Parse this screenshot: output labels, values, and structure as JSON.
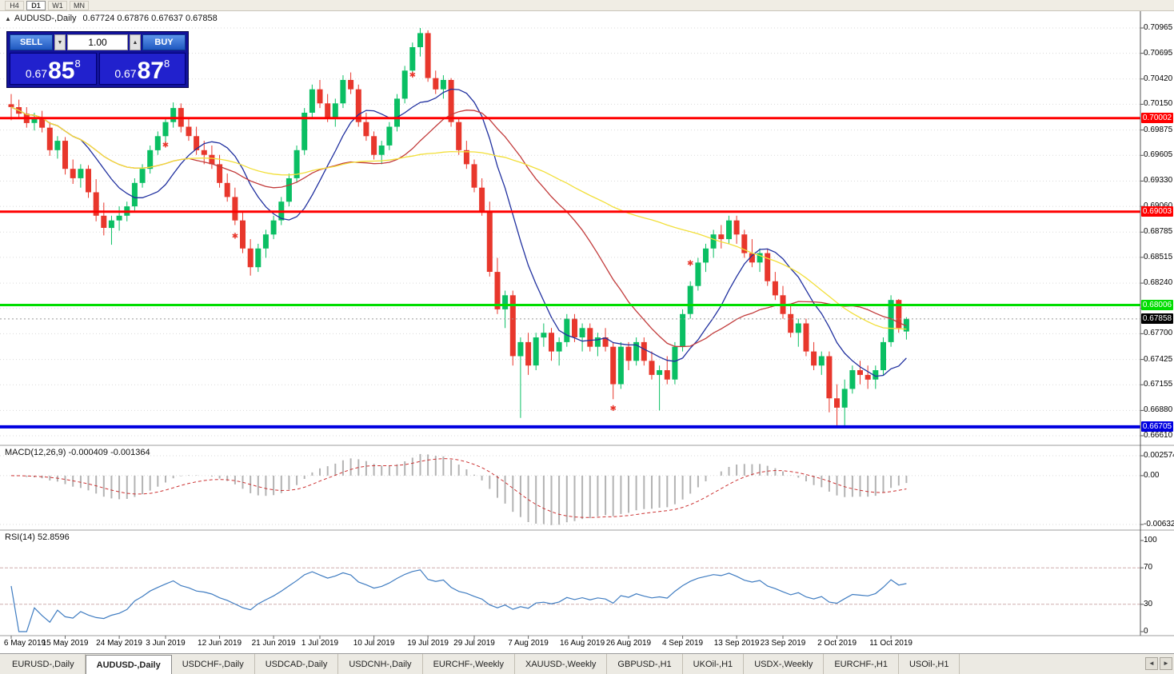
{
  "colors": {
    "up": "#0abf63",
    "down": "#e8372c",
    "grid": "#dadada",
    "separator": "#9c9c9c",
    "ma_fast": "#20309f",
    "ma_mid": "#c23b3b",
    "ma_slow": "#f2df3a",
    "macd_hist": "#b3b3b3",
    "macd_signal": "#cc3333",
    "rsi_line": "#3f7cc1",
    "rsi_level": "#cfadad",
    "current_line": "#9a9a9a",
    "current_tag": "#000000"
  },
  "toolbar": {
    "timeframes": [
      {
        "label": "H4",
        "active": false
      },
      {
        "label": "D1",
        "active": true
      },
      {
        "label": "W1",
        "active": false
      },
      {
        "label": "MN",
        "active": false
      }
    ]
  },
  "chart_header": {
    "collapse_icon": "▲",
    "title": "AUDUSD-,Daily",
    "ohlc": "0.67724 0.67876 0.67637 0.67858"
  },
  "trade_panel": {
    "sell_label": "SELL",
    "buy_label": "BUY",
    "volume": "1.00",
    "volume_down_icon": "▼",
    "volume_up_icon": "▲",
    "sell_price": {
      "prefix": "0.67",
      "digits": "85",
      "pip": "8"
    },
    "buy_price": {
      "prefix": "0.67",
      "digits": "87",
      "pip": "8"
    }
  },
  "chart_data": {
    "type": "candlestick",
    "symbol": "AUDUSD-",
    "timeframe": "Daily",
    "last_ohlc": {
      "open": 0.67724,
      "high": 0.67876,
      "low": 0.67637,
      "close": 0.67858
    },
    "y_axis_labels": [
      "0.70965",
      "0.70695",
      "0.70420",
      "0.70150",
      "0.69875",
      "0.69605",
      "0.69330",
      "0.69060",
      "0.68785",
      "0.68515",
      "0.68240",
      "0.67970",
      "0.67700",
      "0.67425",
      "0.67155",
      "0.66880",
      "0.66610"
    ],
    "x_ticks": [
      {
        "bar": 0,
        "label": "6 May 2019"
      },
      {
        "bar": 7,
        "label": "15 May 2019"
      },
      {
        "bar": 14,
        "label": "24 May 2019"
      },
      {
        "bar": 20,
        "label": "3 Jun 2019"
      },
      {
        "bar": 27,
        "label": "12 Jun 2019"
      },
      {
        "bar": 34,
        "label": "21 Jun 2019"
      },
      {
        "bar": 40,
        "label": "1 Jul 2019"
      },
      {
        "bar": 47,
        "label": "10 Jul 2019"
      },
      {
        "bar": 54,
        "label": "19 Jul 2019"
      },
      {
        "bar": 60,
        "label": "29 Jul 2019"
      },
      {
        "bar": 67,
        "label": "7 Aug 2019"
      },
      {
        "bar": 74,
        "label": "16 Aug 2019"
      },
      {
        "bar": 80,
        "label": "26 Aug 2019"
      },
      {
        "bar": 87,
        "label": "4 Sep 2019"
      },
      {
        "bar": 94,
        "label": "13 Sep 2019"
      },
      {
        "bar": 100,
        "label": "23 Sep 2019"
      },
      {
        "bar": 107,
        "label": "2 Oct 2019"
      },
      {
        "bar": 114,
        "label": "11 Oct 2019"
      }
    ],
    "candles": [
      [
        0.7015,
        0.7026,
        0.6998,
        0.7012
      ],
      [
        0.7012,
        0.702,
        0.7,
        0.7005
      ],
      [
        0.7005,
        0.7012,
        0.699,
        0.6995
      ],
      [
        0.6995,
        0.7006,
        0.6987,
        0.7001
      ],
      [
        0.7001,
        0.7008,
        0.6985,
        0.699
      ],
      [
        0.699,
        0.6996,
        0.696,
        0.6966
      ],
      [
        0.6966,
        0.6981,
        0.6957,
        0.6976
      ],
      [
        0.6976,
        0.698,
        0.694,
        0.6946
      ],
      [
        0.6946,
        0.6956,
        0.693,
        0.6936
      ],
      [
        0.6936,
        0.6951,
        0.6926,
        0.6946
      ],
      [
        0.6946,
        0.695,
        0.6915,
        0.6921
      ],
      [
        0.6921,
        0.6935,
        0.689,
        0.6896
      ],
      [
        0.6896,
        0.691,
        0.6875,
        0.6883
      ],
      [
        0.6883,
        0.6896,
        0.6865,
        0.6891
      ],
      [
        0.6891,
        0.6906,
        0.688,
        0.6896
      ],
      [
        0.6896,
        0.6911,
        0.689,
        0.6906
      ],
      [
        0.6906,
        0.6936,
        0.6901,
        0.6931
      ],
      [
        0.6931,
        0.6951,
        0.6926,
        0.6946
      ],
      [
        0.6946,
        0.6971,
        0.6941,
        0.6966
      ],
      [
        0.6966,
        0.6986,
        0.6961,
        0.6981
      ],
      [
        0.6981,
        0.7001,
        0.697,
        0.6996
      ],
      [
        0.6996,
        0.7017,
        0.699,
        0.7011
      ],
      [
        0.7011,
        0.7016,
        0.6985,
        0.6991
      ],
      [
        0.6991,
        0.7001,
        0.6976,
        0.6981
      ],
      [
        0.6981,
        0.6991,
        0.6961,
        0.6966
      ],
      [
        0.6966,
        0.6976,
        0.6951,
        0.6961
      ],
      [
        0.6961,
        0.6971,
        0.6946,
        0.6951
      ],
      [
        0.6951,
        0.6961,
        0.6926,
        0.6931
      ],
      [
        0.6931,
        0.6941,
        0.6911,
        0.6916
      ],
      [
        0.6916,
        0.6926,
        0.6886,
        0.6891
      ],
      [
        0.6891,
        0.6901,
        0.6856,
        0.6861
      ],
      [
        0.6861,
        0.6871,
        0.6832,
        0.6841
      ],
      [
        0.6841,
        0.6866,
        0.6836,
        0.6861
      ],
      [
        0.6861,
        0.6881,
        0.6851,
        0.6876
      ],
      [
        0.6876,
        0.6896,
        0.6871,
        0.6891
      ],
      [
        0.6891,
        0.6916,
        0.6886,
        0.6911
      ],
      [
        0.6911,
        0.6941,
        0.6906,
        0.6936
      ],
      [
        0.6936,
        0.6971,
        0.6931,
        0.6966
      ],
      [
        0.6966,
        0.7011,
        0.6961,
        0.7006
      ],
      [
        0.7006,
        0.7036,
        0.7001,
        0.7031
      ],
      [
        0.7031,
        0.7041,
        0.7011,
        0.7016
      ],
      [
        0.7016,
        0.7026,
        0.6996,
        0.7001
      ],
      [
        0.7001,
        0.7021,
        0.6991,
        0.7016
      ],
      [
        0.7016,
        0.7046,
        0.7011,
        0.7041
      ],
      [
        0.7041,
        0.7049,
        0.7026,
        0.7031
      ],
      [
        0.7031,
        0.7036,
        0.6991,
        0.6996
      ],
      [
        0.6996,
        0.7006,
        0.6976,
        0.6981
      ],
      [
        0.6981,
        0.6986,
        0.6956,
        0.6961
      ],
      [
        0.6961,
        0.6976,
        0.6951,
        0.6971
      ],
      [
        0.6971,
        0.6996,
        0.6966,
        0.6991
      ],
      [
        0.6991,
        0.7026,
        0.6986,
        0.7021
      ],
      [
        0.7021,
        0.7056,
        0.7016,
        0.7051
      ],
      [
        0.7051,
        0.7081,
        0.7046,
        0.7076
      ],
      [
        0.7076,
        0.70965,
        0.7066,
        0.7091
      ],
      [
        0.7091,
        0.7094,
        0.7039,
        0.7043
      ],
      [
        0.7043,
        0.7051,
        0.7026,
        0.7031
      ],
      [
        0.7031,
        0.7046,
        0.7021,
        0.7041
      ],
      [
        0.7041,
        0.7043,
        0.6991,
        0.6996
      ],
      [
        0.6996,
        0.7001,
        0.6961,
        0.6966
      ],
      [
        0.6966,
        0.6976,
        0.6946,
        0.6951
      ],
      [
        0.6951,
        0.6956,
        0.6921,
        0.6926
      ],
      [
        0.6926,
        0.6936,
        0.6896,
        0.6901
      ],
      [
        0.6901,
        0.6911,
        0.6831,
        0.6836
      ],
      [
        0.6836,
        0.6851,
        0.6791,
        0.6796
      ],
      [
        0.6796,
        0.6816,
        0.6776,
        0.6811
      ],
      [
        0.6811,
        0.6816,
        0.6736,
        0.6746
      ],
      [
        0.6746,
        0.6766,
        0.668,
        0.6761
      ],
      [
        0.6761,
        0.6771,
        0.6726,
        0.6736
      ],
      [
        0.6736,
        0.6771,
        0.6731,
        0.6766
      ],
      [
        0.6766,
        0.6781,
        0.6756,
        0.6771
      ],
      [
        0.6771,
        0.6776,
        0.6741,
        0.6751
      ],
      [
        0.6751,
        0.6766,
        0.6736,
        0.6761
      ],
      [
        0.6761,
        0.6791,
        0.6756,
        0.6786
      ],
      [
        0.6786,
        0.6791,
        0.6761,
        0.6766
      ],
      [
        0.6766,
        0.6781,
        0.6751,
        0.6776
      ],
      [
        0.6776,
        0.6781,
        0.6751,
        0.6756
      ],
      [
        0.6756,
        0.6771,
        0.6746,
        0.6766
      ],
      [
        0.6766,
        0.6776,
        0.6751,
        0.6756
      ],
      [
        0.6756,
        0.6761,
        0.67,
        0.6716
      ],
      [
        0.6716,
        0.6761,
        0.6711,
        0.6756
      ],
      [
        0.6756,
        0.6761,
        0.6731,
        0.6741
      ],
      [
        0.6741,
        0.6766,
        0.6736,
        0.6761
      ],
      [
        0.6761,
        0.6766,
        0.6736,
        0.6741
      ],
      [
        0.6741,
        0.6751,
        0.6721,
        0.6726
      ],
      [
        0.6726,
        0.6736,
        0.6688,
        0.6731
      ],
      [
        0.6731,
        0.6746,
        0.6716,
        0.6721
      ],
      [
        0.6721,
        0.6761,
        0.6716,
        0.6756
      ],
      [
        0.6756,
        0.6796,
        0.6751,
        0.6791
      ],
      [
        0.6791,
        0.6826,
        0.6786,
        0.6821
      ],
      [
        0.6821,
        0.6851,
        0.6816,
        0.6846
      ],
      [
        0.6846,
        0.6866,
        0.6836,
        0.6861
      ],
      [
        0.6861,
        0.6881,
        0.6851,
        0.6876
      ],
      [
        0.6876,
        0.6886,
        0.6861,
        0.6871
      ],
      [
        0.6871,
        0.6896,
        0.6866,
        0.6891
      ],
      [
        0.6891,
        0.6896,
        0.6866,
        0.6876
      ],
      [
        0.6876,
        0.6881,
        0.6851,
        0.6856
      ],
      [
        0.6856,
        0.6871,
        0.6841,
        0.6846
      ],
      [
        0.6846,
        0.6861,
        0.6836,
        0.6856
      ],
      [
        0.6856,
        0.6861,
        0.6821,
        0.6826
      ],
      [
        0.6826,
        0.6836,
        0.6806,
        0.6811
      ],
      [
        0.6811,
        0.6821,
        0.6786,
        0.6791
      ],
      [
        0.6791,
        0.6801,
        0.6766,
        0.6771
      ],
      [
        0.6771,
        0.6786,
        0.6756,
        0.6781
      ],
      [
        0.6781,
        0.6786,
        0.6746,
        0.6751
      ],
      [
        0.6751,
        0.6761,
        0.6731,
        0.6736
      ],
      [
        0.6736,
        0.6751,
        0.6726,
        0.6746
      ],
      [
        0.6746,
        0.6751,
        0.6686,
        0.6701
      ],
      [
        0.6701,
        0.6716,
        0.6671,
        0.6691
      ],
      [
        0.6691,
        0.6721,
        0.667,
        0.6711
      ],
      [
        0.6711,
        0.6736,
        0.6706,
        0.6731
      ],
      [
        0.6731,
        0.6741,
        0.6716,
        0.6726
      ],
      [
        0.6726,
        0.6736,
        0.6711,
        0.6721
      ],
      [
        0.6721,
        0.6736,
        0.6711,
        0.6731
      ],
      [
        0.6731,
        0.6766,
        0.6726,
        0.6761
      ],
      [
        0.6761,
        0.6811,
        0.6756,
        0.6806
      ],
      [
        0.6806,
        0.6807,
        0.6771,
        0.6776
      ],
      [
        0.67724,
        0.67876,
        0.67637,
        0.67858
      ]
    ],
    "moving_averages": [
      {
        "period": 10,
        "color": "#20309f"
      },
      {
        "period": 24,
        "color": "#c23b3b"
      },
      {
        "period": 52,
        "color": "#f2df3a"
      }
    ],
    "hlines": [
      {
        "price": 0.70002,
        "color": "#ff0000",
        "label": "0.70002",
        "width": 3
      },
      {
        "price": 0.69003,
        "color": "#ff0000",
        "label": "0.69003",
        "width": 3
      },
      {
        "price": 0.68006,
        "color": "#00dd00",
        "label": "0.68006",
        "width": 3
      },
      {
        "price": 0.66705,
        "color": "#0000e0",
        "label": "0.66705",
        "width": 4
      }
    ],
    "current_price": {
      "value": 0.67858,
      "label": "0.67858"
    },
    "markers": [
      {
        "bar": 20,
        "price": 0.69714
      },
      {
        "bar": 29,
        "price": 0.6874
      },
      {
        "bar": 52,
        "price": 0.7046
      },
      {
        "bar": 78,
        "price": 0.669
      },
      {
        "bar": 88,
        "price": 0.6845
      }
    ],
    "indicators": {
      "macd": {
        "label": "MACD(12,26,9)",
        "values_text": "-0.000409 -0.001364",
        "fast": 12,
        "slow": 26,
        "signal": 9,
        "axis_labels": [
          "0.002574",
          "0.00",
          "-0.006326"
        ],
        "axis_values": [
          0.002574,
          0,
          -0.006326
        ]
      },
      "rsi": {
        "label": "RSI(14)",
        "value_text": "52.8596",
        "period": 14,
        "axis_labels": [
          "100",
          "70",
          "30",
          "0"
        ],
        "axis_values": [
          100,
          70,
          30,
          0
        ],
        "levels": [
          70,
          30
        ]
      }
    }
  },
  "tabs": {
    "items": [
      "EURUSD-,Daily",
      "AUDUSD-,Daily",
      "USDCHF-,Daily",
      "USDCAD-,Daily",
      "USDCNH-,Daily",
      "EURCHF-,Weekly",
      "XAUUSD-,Weekly",
      "GBPUSD-,H1",
      "UKOil-,H1",
      "USDX-,Weekly",
      "EURCHF-,H1",
      "USOil-,H1"
    ],
    "active_index": 1,
    "scroll_left_icon": "◄",
    "scroll_right_icon": "►"
  }
}
